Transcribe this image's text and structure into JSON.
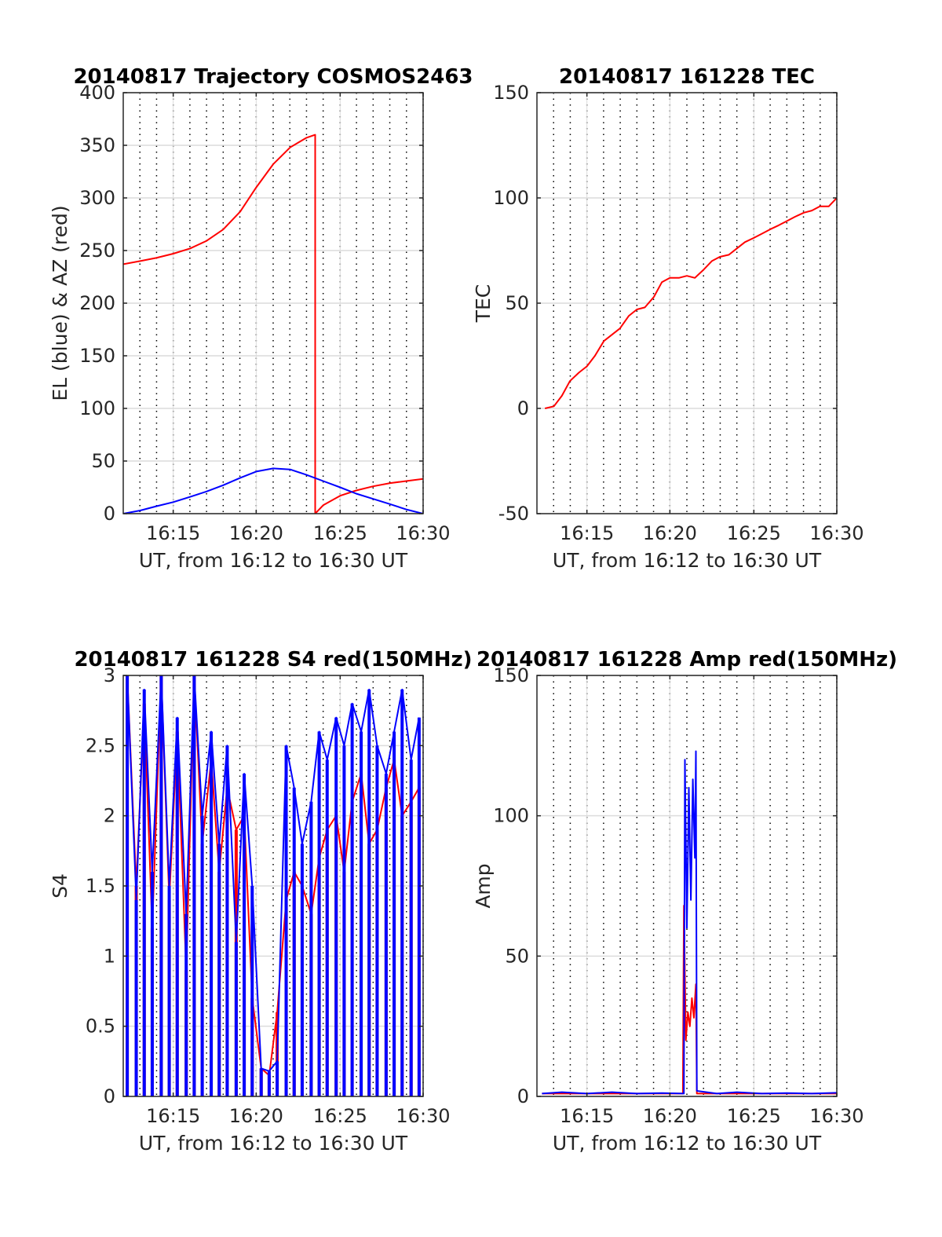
{
  "colors": {
    "red": "#ff0000",
    "blue": "#0000ff",
    "axis": "#262626",
    "grid": "#dcdcdc",
    "minor_grid": "#000000"
  },
  "chart_data": [
    {
      "id": "trajectory",
      "type": "line",
      "title": "20140817 Trajectory COSMOS2463",
      "xlabel": "UT, from 16:12 to 16:30 UT",
      "ylabel": "EL (blue) & AZ (red)",
      "xlim": [
        16.2,
        16.5
      ],
      "ylim": [
        0,
        400
      ],
      "yticks": [
        0,
        50,
        100,
        150,
        200,
        250,
        300,
        350,
        400
      ],
      "xticks": [
        16.25,
        16.333,
        16.417,
        16.5
      ],
      "xticklabels": [
        "16:15",
        "16:20",
        "16:25",
        "16:30"
      ],
      "grid": true,
      "series": [
        {
          "color": "red",
          "x": [
            16.2,
            16.217,
            16.233,
            16.25,
            16.267,
            16.283,
            16.3,
            16.317,
            16.333,
            16.35,
            16.367,
            16.383,
            16.392,
            16.392,
            16.4,
            16.417,
            16.433,
            16.45,
            16.467,
            16.483,
            16.5
          ],
          "y": [
            237,
            240,
            243,
            247,
            252,
            259,
            270,
            287,
            310,
            332,
            348,
            357,
            360,
            0,
            8,
            17,
            22,
            26,
            29,
            31,
            33
          ]
        },
        {
          "color": "blue",
          "x": [
            16.2,
            16.217,
            16.233,
            16.25,
            16.267,
            16.283,
            16.3,
            16.317,
            16.333,
            16.35,
            16.367,
            16.383,
            16.4,
            16.417,
            16.433,
            16.45,
            16.467,
            16.483,
            16.5
          ],
          "y": [
            0,
            3,
            7,
            11,
            16,
            21,
            27,
            34,
            40,
            43,
            42,
            37,
            31,
            25,
            19,
            14,
            9,
            4,
            0
          ]
        }
      ]
    },
    {
      "id": "tec",
      "type": "line",
      "title": "20140817 161228 TEC",
      "xlabel": "UT, from 16:12 to 16:30 UT",
      "ylabel": "TEC",
      "xlim": [
        16.2,
        16.5
      ],
      "ylim": [
        -50,
        150
      ],
      "yticks": [
        -50,
        0,
        50,
        100,
        150
      ],
      "xticks": [
        16.25,
        16.333,
        16.417,
        16.5
      ],
      "xticklabels": [
        "16:15",
        "16:20",
        "16:25",
        "16:30"
      ],
      "grid": true,
      "series": [
        {
          "color": "red",
          "x": [
            16.208,
            16.217,
            16.225,
            16.233,
            16.242,
            16.25,
            16.258,
            16.267,
            16.275,
            16.283,
            16.292,
            16.3,
            16.308,
            16.317,
            16.325,
            16.333,
            16.342,
            16.35,
            16.358,
            16.367,
            16.375,
            16.383,
            16.392,
            16.4,
            16.408,
            16.417,
            16.425,
            16.433,
            16.442,
            16.45,
            16.458,
            16.467,
            16.475,
            16.483,
            16.492,
            16.5
          ],
          "y": [
            0,
            1,
            6,
            13,
            17,
            20,
            25,
            32,
            35,
            38,
            44,
            47,
            48,
            53,
            60,
            62,
            62,
            63,
            62,
            66,
            70,
            72,
            73,
            76,
            79,
            81,
            83,
            85,
            87,
            89,
            91,
            93,
            94,
            96,
            96,
            100
          ]
        }
      ]
    },
    {
      "id": "s4",
      "type": "line",
      "title": "20140817 161228 S4 red(150MHz)",
      "xlabel": "UT, from 16:12 to 16:30 UT",
      "ylabel": "S4",
      "xlim": [
        16.2,
        16.5
      ],
      "ylim": [
        0,
        3
      ],
      "yticks": [
        0,
        0.5,
        1,
        1.5,
        2,
        2.5,
        3
      ],
      "yticklabels": [
        "0",
        "0.5",
        "1",
        "1.5",
        "2",
        "2.5",
        "3"
      ],
      "xticks": [
        16.25,
        16.333,
        16.417,
        16.5
      ],
      "xticklabels": [
        "16:15",
        "16:20",
        "16:25",
        "16:30"
      ],
      "grid": true,
      "series": [
        {
          "color": "red",
          "x": [
            16.204,
            16.213,
            16.221,
            16.229,
            16.238,
            16.246,
            16.254,
            16.263,
            16.271,
            16.279,
            16.288,
            16.296,
            16.304,
            16.313,
            16.321,
            16.329,
            16.338,
            16.346,
            16.354,
            16.363,
            16.371,
            16.379,
            16.388,
            16.396,
            16.404,
            16.413,
            16.421,
            16.429,
            16.438,
            16.446,
            16.454,
            16.463,
            16.471,
            16.479,
            16.488,
            16.496
          ],
          "y": [
            3.0,
            1.5,
            2.8,
            1.2,
            3.0,
            1.4,
            2.6,
            0.9,
            3.0,
            1.8,
            2.4,
            1.6,
            2.2,
            1.9,
            2.0,
            0.7,
            0.2,
            0.15,
            0.6,
            1.4,
            1.6,
            1.5,
            1.3,
            1.7,
            1.9,
            2.0,
            1.6,
            2.1,
            2.3,
            1.8,
            1.9,
            2.2,
            2.4,
            2.0,
            2.1,
            2.2
          ]
        },
        {
          "color": "blue",
          "x": [
            16.204,
            16.213,
            16.221,
            16.229,
            16.238,
            16.246,
            16.254,
            16.263,
            16.271,
            16.279,
            16.288,
            16.296,
            16.304,
            16.313,
            16.321,
            16.329,
            16.338,
            16.346,
            16.354,
            16.363,
            16.371,
            16.379,
            16.388,
            16.396,
            16.404,
            16.413,
            16.421,
            16.429,
            16.438,
            16.446,
            16.454,
            16.463,
            16.471,
            16.479,
            16.488,
            16.496
          ],
          "y": [
            3.0,
            1.4,
            2.9,
            1.6,
            3.0,
            1.5,
            2.7,
            1.3,
            3.0,
            2.0,
            2.6,
            1.8,
            2.5,
            1.1,
            2.3,
            1.5,
            0.2,
            0.18,
            0.25,
            2.5,
            2.2,
            1.8,
            2.1,
            2.6,
            2.4,
            2.7,
            2.5,
            2.8,
            2.6,
            2.9,
            2.5,
            2.3,
            2.6,
            2.9,
            2.4,
            2.7
          ]
        }
      ]
    },
    {
      "id": "amp",
      "type": "line",
      "title": "20140817 161228 Amp red(150MHz)",
      "xlabel": "UT, from 16:12 to 16:30 UT",
      "ylabel": "Amp",
      "xlim": [
        16.2,
        16.5
      ],
      "ylim": [
        0,
        150
      ],
      "yticks": [
        0,
        50,
        100,
        150
      ],
      "xticks": [
        16.25,
        16.333,
        16.417,
        16.5
      ],
      "xticklabels": [
        "16:15",
        "16:20",
        "16:25",
        "16:30"
      ],
      "grid": true,
      "series": [
        {
          "color": "red",
          "x": [
            16.205,
            16.25,
            16.3,
            16.346,
            16.347,
            16.349,
            16.351,
            16.353,
            16.355,
            16.357,
            16.359,
            16.36,
            16.4,
            16.45,
            16.5
          ],
          "y": [
            1,
            1,
            1,
            1,
            68,
            20,
            30,
            25,
            35,
            28,
            40,
            1,
            1,
            1,
            1
          ]
        },
        {
          "color": "blue",
          "x": [
            16.205,
            16.225,
            16.25,
            16.275,
            16.3,
            16.325,
            16.347,
            16.348,
            16.35,
            16.352,
            16.354,
            16.356,
            16.358,
            16.359,
            16.36,
            16.38,
            16.4,
            16.425,
            16.45,
            16.475,
            16.5
          ],
          "y": [
            1,
            1.5,
            1,
            1.5,
            1,
            1.2,
            1,
            120,
            60,
            110,
            70,
            113,
            85,
            123,
            2,
            1,
            1.5,
            1,
            1.2,
            1,
            1.3
          ]
        }
      ]
    }
  ]
}
